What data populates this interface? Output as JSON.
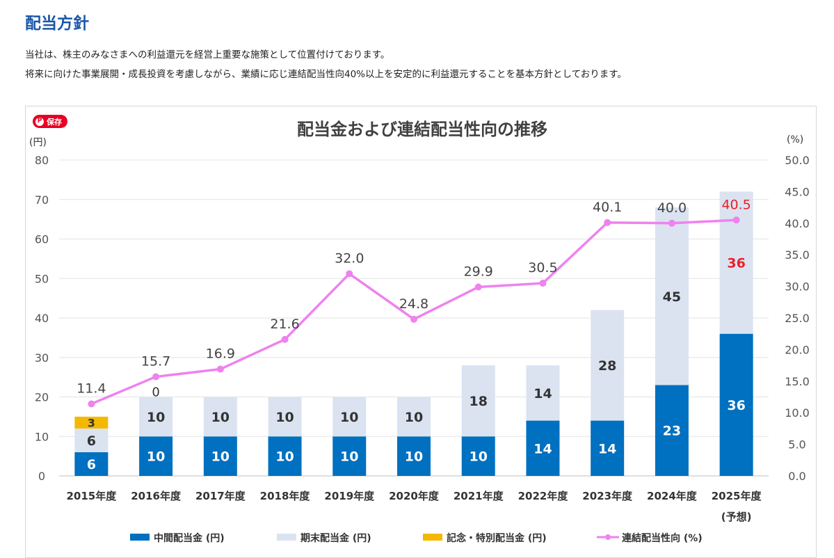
{
  "page": {
    "title": "配当方針",
    "paragraphs": [
      "当社は、株主のみなさまへの利益還元を経営上重要な施策として位置付けております。",
      "将来に向けた事業展開・成長投資を考慮しながら、業績に応じ連結配当性向40%以上を安定的に利益還元することを基本方針としております。"
    ],
    "save_label": "保存",
    "save_icon": "pinterest-icon"
  },
  "chart_data": {
    "type": "bar",
    "subtype": "stacked-bar-with-line",
    "title": "配当金および連結配当性向の推移",
    "ylabel_left": "(円)",
    "ylabel_right": "(%)",
    "ylim_left": [
      0,
      80
    ],
    "ylim_right": [
      0,
      50
    ],
    "left_ticks": [
      "0",
      "10",
      "20",
      "30",
      "40",
      "50",
      "60",
      "70",
      "80"
    ],
    "right_ticks": [
      "0.0",
      "5.0",
      "10.0",
      "15.0",
      "20.0",
      "25.0",
      "30.0",
      "35.0",
      "40.0",
      "45.0",
      "50.0"
    ],
    "grid": true,
    "categories": [
      "2015年度",
      "2016年度",
      "2017年度",
      "2018年度",
      "2019年度",
      "2020年度",
      "2021年度",
      "2022年度",
      "2023年度",
      "2024年度",
      "2025年度"
    ],
    "category_note": "(予想)",
    "series": [
      {
        "name": "中間配当金 (円)",
        "kind": "bar",
        "color": "#0070c0",
        "values": [
          6,
          10,
          10,
          10,
          10,
          10,
          10,
          14,
          14,
          23,
          36
        ]
      },
      {
        "name": "期末配当金 (円)",
        "kind": "bar",
        "color": "#dbe3f1",
        "values": [
          6,
          10,
          10,
          10,
          10,
          10,
          18,
          14,
          28,
          45,
          36
        ]
      },
      {
        "name": "記念・特別配当金 (円)",
        "kind": "bar",
        "color": "#f5b800",
        "values": [
          3,
          0,
          0,
          0,
          0,
          0,
          0,
          0,
          0,
          0,
          0
        ]
      },
      {
        "name": "連結配当性向 (%)",
        "kind": "line",
        "axis": "right",
        "color": "#ee82ee",
        "values": [
          11.4,
          15.7,
          16.9,
          21.6,
          32.0,
          24.8,
          29.9,
          30.5,
          40.1,
          40.0,
          40.5
        ]
      }
    ],
    "interim_labels": [
      "6",
      "10",
      "10",
      "10",
      "10",
      "10",
      "10",
      "14",
      "14",
      "23",
      "36"
    ],
    "final_labels": [
      "6",
      "10",
      "10",
      "10",
      "10",
      "10",
      "18",
      "14",
      "28",
      "45",
      "36"
    ],
    "special_labels": [
      "3",
      "0",
      "",
      "",
      "",
      "",
      "",
      "",
      "",
      "",
      ""
    ],
    "ratio_labels": [
      "11.4",
      "15.7",
      "16.9",
      "21.6",
      "32.0",
      "24.8",
      "29.9",
      "30.5",
      "40.1",
      "40.0",
      "40.5"
    ],
    "forecast_index": 10,
    "forecast_color": "#e8202a",
    "legend_position": "bottom"
  }
}
